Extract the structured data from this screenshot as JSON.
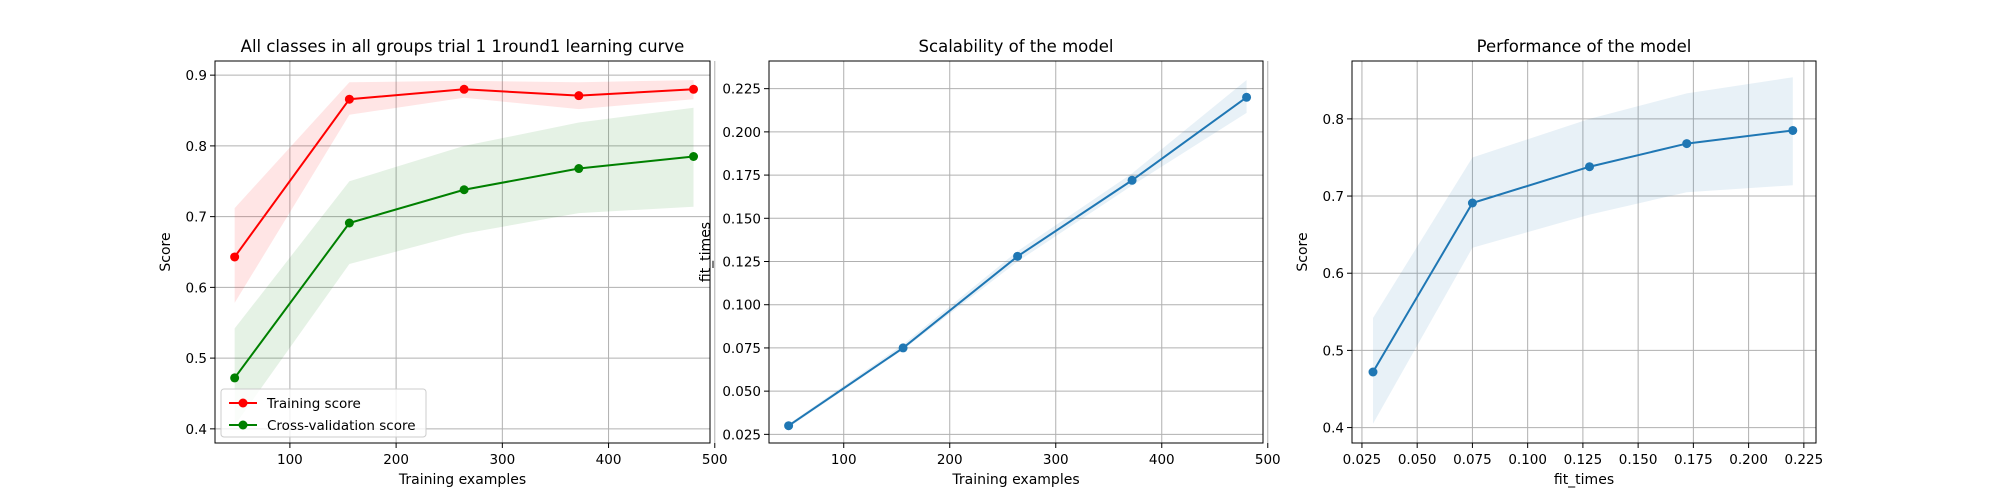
{
  "chart_data": [
    {
      "type": "line",
      "title": "All classes in all groups trial 1 1round1 learning curve",
      "xlabel": "Training examples",
      "ylabel": "Score",
      "xlim": [
        29.5,
        495.5
      ],
      "ylim": [
        0.38,
        0.92
      ],
      "xticks": [
        "100",
        "200",
        "300",
        "400",
        "500"
      ],
      "xtick_values": [
        100,
        200,
        300,
        400,
        500
      ],
      "yticks": [
        "0.4",
        "0.5",
        "0.6",
        "0.7",
        "0.8",
        "0.9"
      ],
      "ytick_values": [
        0.4,
        0.5,
        0.6,
        0.7,
        0.8,
        0.9
      ],
      "grid": true,
      "legend_position": "lower-left",
      "x": [
        48,
        156,
        264,
        372,
        480
      ],
      "series": [
        {
          "name": "Training score",
          "color": "#ff0000",
          "band_color": "#ff0000",
          "marker": "circle",
          "values": [
            0.643,
            0.866,
            0.88,
            0.871,
            0.88
          ],
          "lower": [
            0.578,
            0.844,
            0.868,
            0.852,
            0.866
          ],
          "upper": [
            0.712,
            0.89,
            0.892,
            0.89,
            0.893
          ]
        },
        {
          "name": "Cross-validation score",
          "color": "#008000",
          "band_color": "#008000",
          "marker": "circle",
          "values": [
            0.472,
            0.691,
            0.738,
            0.768,
            0.785
          ],
          "lower": [
            0.405,
            0.633,
            0.676,
            0.705,
            0.714
          ],
          "upper": [
            0.542,
            0.75,
            0.8,
            0.833,
            0.854
          ]
        }
      ]
    },
    {
      "type": "line",
      "title": "Scalability of the model",
      "xlabel": "Training examples",
      "ylabel": "fit_times",
      "xlim": [
        29.5,
        495.5
      ],
      "ylim": [
        0.02,
        0.241
      ],
      "xticks": [
        "100",
        "200",
        "300",
        "400",
        "500"
      ],
      "xtick_values": [
        100,
        200,
        300,
        400,
        500
      ],
      "yticks": [
        "0.025",
        "0.050",
        "0.075",
        "0.100",
        "0.125",
        "0.150",
        "0.175",
        "0.200",
        "0.225"
      ],
      "ytick_values": [
        0.025,
        0.05,
        0.075,
        0.1,
        0.125,
        0.15,
        0.175,
        0.2,
        0.225
      ],
      "grid": true,
      "x": [
        48,
        156,
        264,
        372,
        480
      ],
      "series": [
        {
          "color": "#1f77b4",
          "band_color": "#1f77b4",
          "marker": "circle",
          "values": [
            0.03,
            0.075,
            0.128,
            0.172,
            0.22
          ],
          "lower": [
            0.029,
            0.074,
            0.125,
            0.169,
            0.211
          ],
          "upper": [
            0.031,
            0.077,
            0.131,
            0.176,
            0.23
          ]
        }
      ]
    },
    {
      "type": "line",
      "title": "Performance of the model",
      "xlabel": "fit_times",
      "ylabel": "Score",
      "xlim": [
        0.0205,
        0.2305
      ],
      "ylim": [
        0.38,
        0.875
      ],
      "xticks": [
        "0.025",
        "0.050",
        "0.075",
        "0.100",
        "0.125",
        "0.150",
        "0.175",
        "0.200",
        "0.225"
      ],
      "xtick_values": [
        0.025,
        0.05,
        0.075,
        0.1,
        0.125,
        0.15,
        0.175,
        0.2,
        0.225
      ],
      "yticks": [
        "0.4",
        "0.5",
        "0.6",
        "0.7",
        "0.8"
      ],
      "ytick_values": [
        0.4,
        0.5,
        0.6,
        0.7,
        0.8
      ],
      "grid": true,
      "x": [
        0.03,
        0.075,
        0.128,
        0.172,
        0.22
      ],
      "series": [
        {
          "color": "#1f77b4",
          "band_color": "#1f77b4",
          "marker": "circle",
          "values": [
            0.472,
            0.691,
            0.738,
            0.768,
            0.785
          ],
          "lower": [
            0.405,
            0.633,
            0.676,
            0.705,
            0.714
          ],
          "upper": [
            0.542,
            0.75,
            0.8,
            0.833,
            0.854
          ]
        }
      ]
    }
  ]
}
